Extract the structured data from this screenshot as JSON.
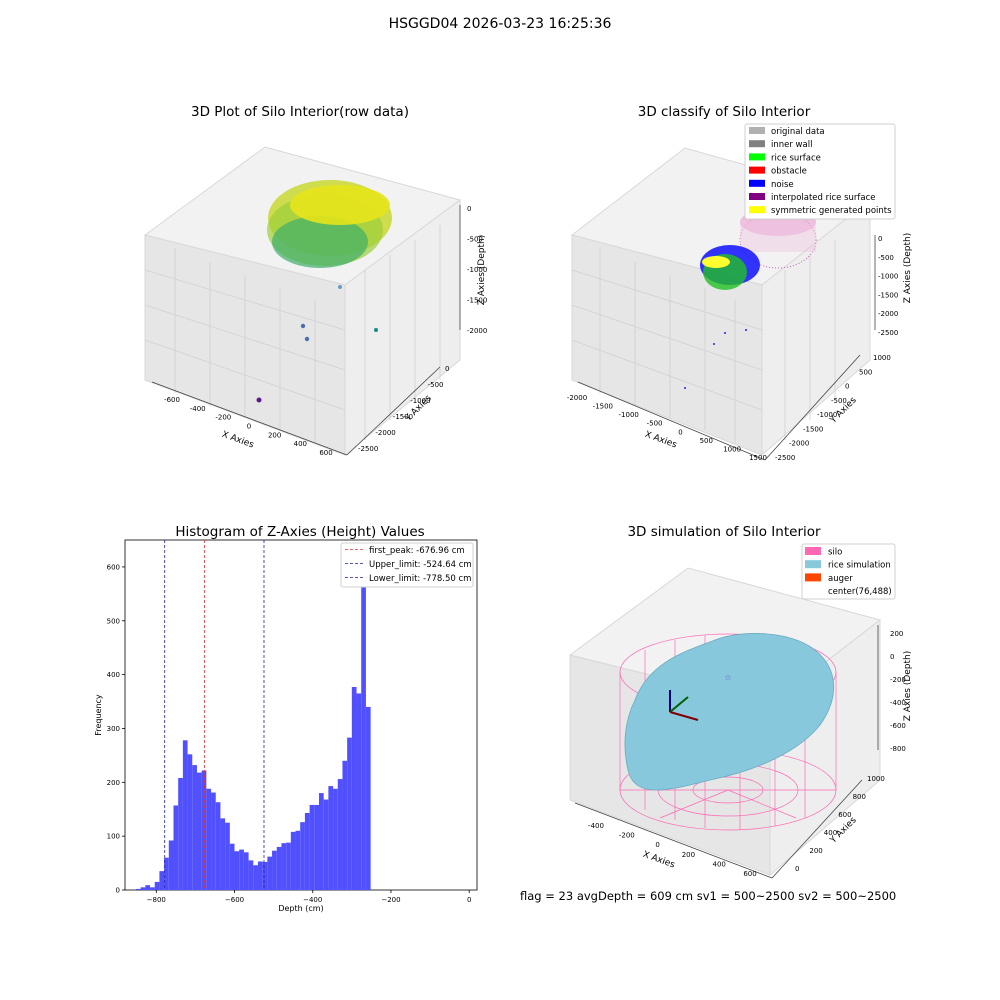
{
  "figure_title": "HSGGD04 2026-03-23 16:25:36",
  "bottom_info": "flag = 23  avgDepth = 609 cm  sv1 = 500~2500  sv2 = 500~2500",
  "colors": {
    "hist_bar": "#5050ff",
    "first_peak_line": "#e03030",
    "limit_lines": "#2020a0",
    "silo_wire": "#ff69b4",
    "rice_fill": "#87c8dc",
    "pane_gray": "#ececec"
  },
  "chart_data": [
    {
      "type": "scatter3d",
      "title": "3D Plot of Silo Interior(row data)",
      "xlabel": "X Axies",
      "ylabel": "Y Axies",
      "zlabel": "Z Axies (Depth)",
      "x_ticks": [
        "-600",
        "-400",
        "-200",
        "0",
        "200",
        "400",
        "600"
      ],
      "y_ticks": [
        "0",
        "-500",
        "-1000",
        "-1500",
        "-2000",
        "-2500"
      ],
      "z_ticks": [
        "0",
        "-500",
        "-1000",
        "-1500",
        "-2000"
      ],
      "grid": true,
      "colormap": "viridis"
    },
    {
      "type": "scatter3d",
      "title": "3D classify of Silo Interior",
      "xlabel": "X Axies",
      "ylabel": "Y Axies",
      "zlabel": "Z Axies (Depth)",
      "x_ticks": [
        "-2000",
        "-1500",
        "-1000",
        "-500",
        "0",
        "500",
        "1000",
        "1500"
      ],
      "y_ticks": [
        "1000",
        "500",
        "0",
        "-500",
        "-1000",
        "-1500",
        "-2000",
        "-2500"
      ],
      "z_ticks": [
        "0",
        "-500",
        "-1000",
        "-1500",
        "-2000",
        "-2500"
      ],
      "legend": [
        {
          "label": "original data",
          "color": "#b0b0b0"
        },
        {
          "label": "inner wall",
          "color": "#808080"
        },
        {
          "label": "rice surface",
          "color": "#00ff00"
        },
        {
          "label": "obstacle",
          "color": "#ff0000"
        },
        {
          "label": "noise",
          "color": "#0000ff"
        },
        {
          "label": "interpolated rice surface",
          "color": "#800080"
        },
        {
          "label": "symmetric generated points",
          "color": "#ffff00"
        }
      ],
      "legend_position": "top-right",
      "grid": true
    },
    {
      "type": "bar",
      "title": "Histogram of Z-Axies (Height) Values",
      "xlabel": "Depth (cm)",
      "ylabel": "Frequency",
      "xlim": [
        -880,
        20
      ],
      "ylim": [
        0,
        650
      ],
      "x_ticks": [
        -800,
        -600,
        -400,
        -200,
        0
      ],
      "y_ticks": [
        0,
        100,
        200,
        300,
        400,
        500,
        600
      ],
      "bin_width": 12,
      "bin_start": -852,
      "values": [
        2,
        5,
        9,
        5,
        15,
        35,
        60,
        92,
        157,
        208,
        278,
        252,
        232,
        218,
        222,
        188,
        181,
        163,
        133,
        125,
        86,
        72,
        75,
        70,
        55,
        46,
        53,
        52,
        62,
        73,
        80,
        87,
        88,
        108,
        110,
        126,
        143,
        158,
        158,
        180,
        168,
        193,
        188,
        206,
        240,
        283,
        377,
        365,
        616,
        340
      ],
      "vlines": [
        {
          "label": "first_peak: -676.96 cm",
          "x": -676.96,
          "style": "dashed",
          "color": "#e03030"
        },
        {
          "label": "Upper_limit: -524.64 cm",
          "x": -524.64,
          "style": "dashed",
          "color": "#2020a0"
        },
        {
          "label": "Lower_limit: -778.50 cm",
          "x": -778.5,
          "style": "dashed",
          "color": "#2020a0"
        }
      ],
      "legend_position": "top-right"
    },
    {
      "type": "surface3d",
      "title": "3D simulation of Silo Interior",
      "xlabel": "X Axies",
      "ylabel": "Y Axies",
      "zlabel": "Z Axies (Depth)",
      "x_ticks": [
        "-400",
        "-200",
        "0",
        "200",
        "400",
        "600"
      ],
      "y_ticks": [
        "1000",
        "800",
        "600",
        "400",
        "200",
        "0"
      ],
      "z_ticks": [
        "200",
        "0",
        "-200",
        "-400",
        "-600",
        "-800"
      ],
      "legend": [
        {
          "label": "silo",
          "color": "#ff69b4"
        },
        {
          "label": "rice simulation",
          "color": "#87c8dc"
        },
        {
          "label": "auger",
          "color": "#ff4500"
        },
        {
          "label": "center(76,488)",
          "color": ""
        }
      ],
      "legend_position": "top-right"
    }
  ]
}
